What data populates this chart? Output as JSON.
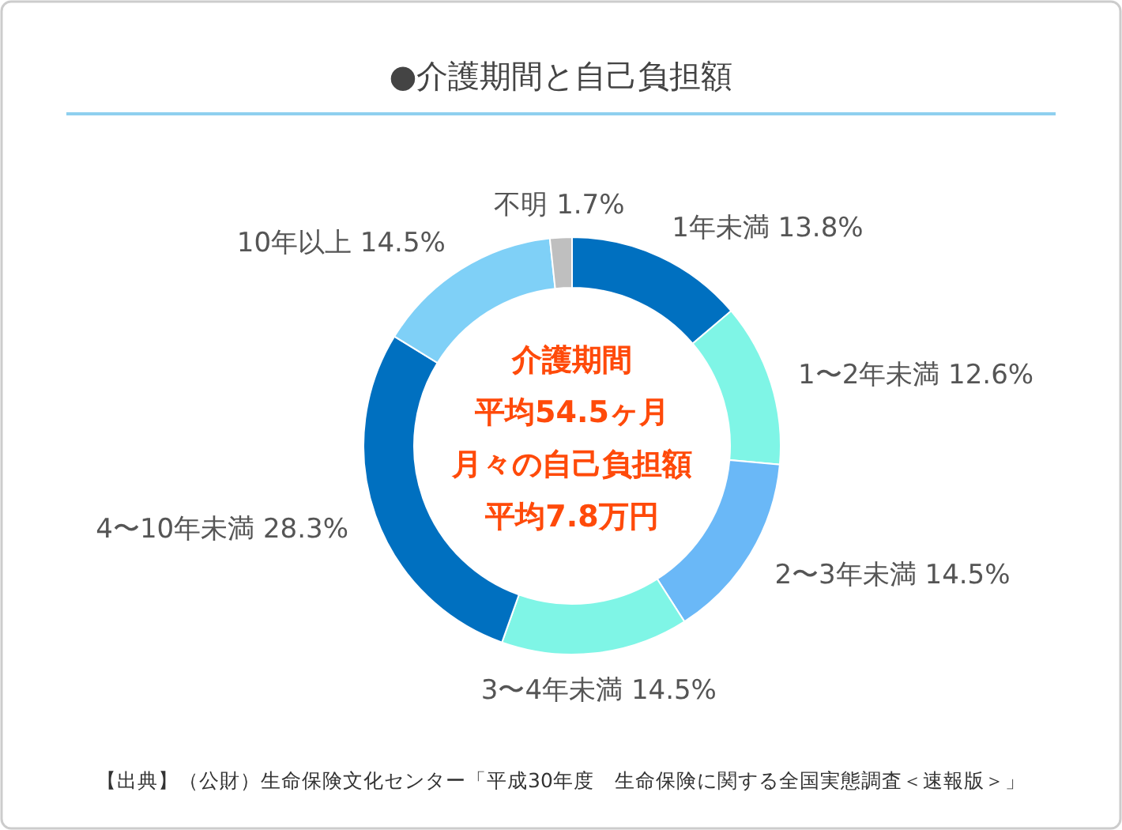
{
  "chart_data": {
    "type": "donut",
    "title": "●介護期間と自己負担額",
    "categories": [
      "1年未満",
      "1〜2年未満",
      "2〜3年未満",
      "3〜4年未満",
      "4〜10年未満",
      "10年以上",
      "不明"
    ],
    "values": [
      13.8,
      12.6,
      14.5,
      14.5,
      28.3,
      14.5,
      1.7
    ],
    "value_labels": [
      "13.8%",
      "12.6%",
      "14.5%",
      "14.5%",
      "28.3%",
      "14.5%",
      "1.7%"
    ],
    "colors": [
      "#0070c0",
      "#7ff5e6",
      "#6ab8f7",
      "#7ff5e6",
      "#0070c0",
      "#7fd0f7",
      "#bfbfbf"
    ],
    "annotations": [
      "介護期間",
      "平均54.5ヶ月",
      "月々の自己負担額",
      "平均7.8万円",
      "【出典】（公財）生命保険文化センター「平成30年度　生命保険に関する全国実態調査＜速報版＞」"
    ]
  }
}
